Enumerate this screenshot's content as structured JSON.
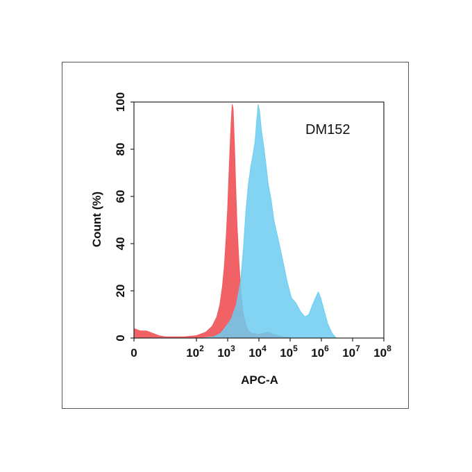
{
  "chart_data": {
    "type": "area",
    "title": "",
    "annotation": "DM152",
    "xlabel": "APC-A",
    "ylabel": "Count  (%)",
    "xscale": "log",
    "xlim": [
      1,
      100000000
    ],
    "ylim": [
      0,
      100
    ],
    "x_ticks": [
      {
        "value": 1,
        "label": "0",
        "exp": ""
      },
      {
        "value": 100,
        "label": "10",
        "exp": "2"
      },
      {
        "value": 1000,
        "label": "10",
        "exp": "3"
      },
      {
        "value": 10000,
        "label": "10",
        "exp": "4"
      },
      {
        "value": 100000,
        "label": "10",
        "exp": "5"
      },
      {
        "value": 1000000,
        "label": "10",
        "exp": "6"
      },
      {
        "value": 10000000,
        "label": "10",
        "exp": "7"
      },
      {
        "value": 100000000,
        "label": "10",
        "exp": "8"
      }
    ],
    "y_ticks": [
      0,
      20,
      40,
      60,
      80,
      100
    ],
    "series": [
      {
        "color": "#f05a5f",
        "points": [
          [
            1,
            4
          ],
          [
            1.6,
            3
          ],
          [
            2.5,
            3
          ],
          [
            4,
            2
          ],
          [
            6.3,
            1
          ],
          [
            10,
            0.5
          ],
          [
            40,
            0.5
          ],
          [
            100,
            1
          ],
          [
            200,
            2.5
          ],
          [
            320,
            5
          ],
          [
            450,
            9
          ],
          [
            560,
            14
          ],
          [
            680,
            22
          ],
          [
            780,
            30
          ],
          [
            890,
            42
          ],
          [
            1000,
            55
          ],
          [
            1100,
            70
          ],
          [
            1200,
            82
          ],
          [
            1300,
            92
          ],
          [
            1400,
            99
          ],
          [
            1500,
            97
          ],
          [
            1650,
            82
          ],
          [
            1800,
            65
          ],
          [
            2000,
            48
          ],
          [
            2300,
            32
          ],
          [
            2700,
            18
          ],
          [
            3200,
            10
          ],
          [
            3800,
            6
          ],
          [
            4500,
            3
          ],
          [
            6000,
            2
          ],
          [
            10000,
            1.5
          ],
          [
            20000,
            2.5
          ],
          [
            30000,
            1.5
          ],
          [
            60000,
            0.5
          ],
          [
            100000,
            0.2
          ]
        ]
      },
      {
        "color": "#6ccdf0",
        "points": [
          [
            150,
            0
          ],
          [
            350,
            0.5
          ],
          [
            600,
            2
          ],
          [
            900,
            5
          ],
          [
            1300,
            8
          ],
          [
            1900,
            14
          ],
          [
            2600,
            24
          ],
          [
            3200,
            38
          ],
          [
            3800,
            53
          ],
          [
            4500,
            64
          ],
          [
            5400,
            72
          ],
          [
            6500,
            78
          ],
          [
            7500,
            83
          ],
          [
            8500,
            92
          ],
          [
            9500,
            99
          ],
          [
            10500,
            96
          ],
          [
            12000,
            88
          ],
          [
            14000,
            82
          ],
          [
            17000,
            73
          ],
          [
            20000,
            65
          ],
          [
            25000,
            58
          ],
          [
            30000,
            50
          ],
          [
            38000,
            44
          ],
          [
            48000,
            38
          ],
          [
            60000,
            32
          ],
          [
            80000,
            24
          ],
          [
            110000,
            17
          ],
          [
            150000,
            15
          ],
          [
            220000,
            11
          ],
          [
            300000,
            9
          ],
          [
            400000,
            10
          ],
          [
            520000,
            14
          ],
          [
            650000,
            17
          ],
          [
            800000,
            19.5
          ],
          [
            950000,
            17
          ],
          [
            1200000,
            12
          ],
          [
            1600000,
            6
          ],
          [
            2200000,
            2
          ],
          [
            3000000,
            0
          ]
        ]
      }
    ]
  }
}
